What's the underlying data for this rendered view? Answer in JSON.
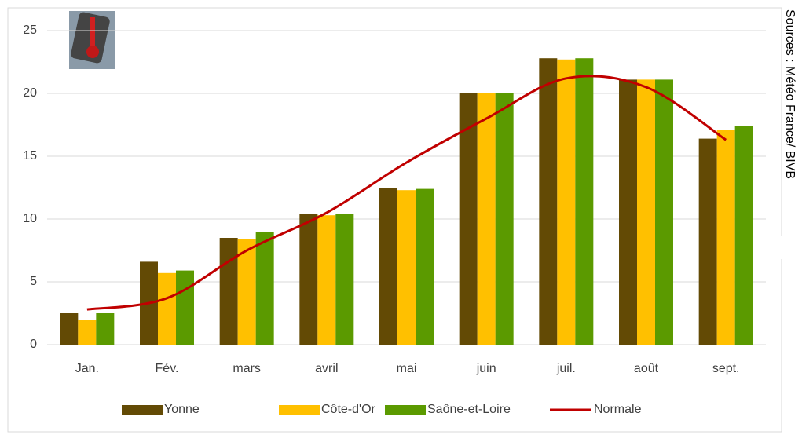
{
  "chart_data": {
    "type": "bar",
    "source": "Sources : Météo France/ BIVB",
    "categories": [
      "Jan.",
      "Fév.",
      "mars",
      "avril",
      "mai",
      "juin",
      "juil.",
      "août",
      "sept."
    ],
    "series": [
      {
        "name": "Yonne",
        "color": "#634a05",
        "values": [
          2.5,
          6.6,
          8.5,
          10.4,
          12.5,
          20.0,
          22.8,
          21.1,
          16.4
        ]
      },
      {
        "name": "Côte-d'Or",
        "color": "#ffc000",
        "values": [
          2.0,
          5.7,
          8.4,
          10.3,
          12.3,
          20.0,
          22.7,
          21.1,
          17.1
        ]
      },
      {
        "name": "Saône-et-Loire",
        "color": "#5b9a00",
        "values": [
          2.5,
          5.9,
          9.0,
          10.4,
          12.4,
          20.0,
          22.8,
          21.1,
          17.4
        ]
      },
      {
        "name": "Normale",
        "type": "line",
        "color": "#c00000",
        "values": [
          2.8,
          3.7,
          7.5,
          10.5,
          14.5,
          18.0,
          21.2,
          20.5,
          16.3
        ]
      }
    ],
    "ylim": [
      0,
      25
    ],
    "yticks": [
      0,
      5,
      10,
      15,
      20,
      25
    ],
    "grid": true,
    "legend": "bottom"
  }
}
